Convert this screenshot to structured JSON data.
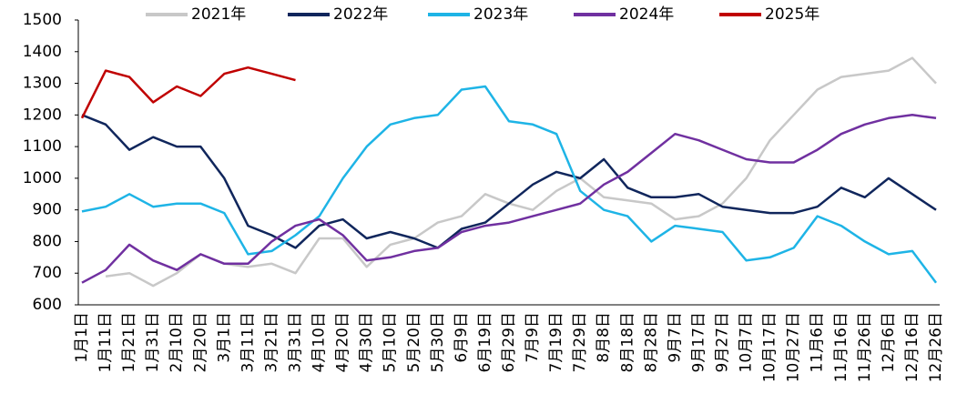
{
  "chart_data": {
    "type": "line",
    "categories": [
      "1月1日",
      "1月11日",
      "1月21日",
      "1月31日",
      "2月10日",
      "2月20日",
      "3月1日",
      "3月11日",
      "3月21日",
      "3月31日",
      "4月10日",
      "4月20日",
      "4月30日",
      "5月10日",
      "5月20日",
      "5月30日",
      "6月9日",
      "6月19日",
      "6月29日",
      "7月9日",
      "7月19日",
      "7月29日",
      "8月8日",
      "8月18日",
      "8月28日",
      "9月7日",
      "9月17日",
      "9月27日",
      "10月7日",
      "10月17日",
      "10月27日",
      "11月6日",
      "11月16日",
      "11月26日",
      "12月6日",
      "12月16日",
      "12月26日"
    ],
    "series": [
      {
        "name": "2021年",
        "color": "#c8c8c8",
        "values": [
          null,
          690,
          700,
          660,
          700,
          760,
          730,
          720,
          730,
          700,
          810,
          810,
          720,
          790,
          810,
          860,
          880,
          950,
          920,
          900,
          960,
          1000,
          940,
          930,
          920,
          870,
          880,
          920,
          1000,
          1120,
          1200,
          1280,
          1320,
          1330,
          1340,
          1380,
          1300
        ]
      },
      {
        "name": "2022年",
        "color": "#10265c",
        "values": [
          1200,
          1170,
          1090,
          1130,
          1100,
          1100,
          1000,
          850,
          820,
          780,
          850,
          870,
          810,
          830,
          810,
          780,
          840,
          860,
          920,
          980,
          1020,
          1000,
          1060,
          970,
          940,
          940,
          950,
          910,
          900,
          890,
          890,
          910,
          970,
          940,
          1000,
          950,
          900
        ]
      },
      {
        "name": "2023年",
        "color": "#1eb4e6",
        "values": [
          895,
          910,
          950,
          910,
          920,
          920,
          890,
          760,
          770,
          820,
          880,
          1000,
          1100,
          1170,
          1190,
          1200,
          1280,
          1290,
          1180,
          1170,
          1140,
          960,
          900,
          880,
          800,
          850,
          840,
          830,
          740,
          750,
          780,
          880,
          850,
          800,
          760,
          770,
          670
        ]
      },
      {
        "name": "2024年",
        "color": "#7030a0",
        "values": [
          670,
          710,
          790,
          740,
          710,
          760,
          730,
          730,
          800,
          850,
          870,
          820,
          740,
          750,
          770,
          780,
          830,
          850,
          860,
          880,
          900,
          920,
          980,
          1020,
          1080,
          1140,
          1120,
          1090,
          1060,
          1050,
          1050,
          1090,
          1140,
          1170,
          1190,
          1200,
          1190
        ]
      },
      {
        "name": "2025年",
        "color": "#c00000",
        "values": [
          1190,
          1340,
          1320,
          1240,
          1290,
          1260,
          1330,
          1350,
          1330,
          1310,
          null,
          null,
          null,
          null,
          null,
          null,
          null,
          null,
          null,
          null,
          null,
          null,
          null,
          null,
          null,
          null,
          null,
          null,
          null,
          null,
          null,
          null,
          null,
          null,
          null,
          null,
          null
        ]
      }
    ],
    "ylim": [
      600,
      1500
    ],
    "yticks": [
      600,
      700,
      800,
      900,
      1000,
      1100,
      1200,
      1300,
      1400,
      1500
    ],
    "legend": "top"
  }
}
